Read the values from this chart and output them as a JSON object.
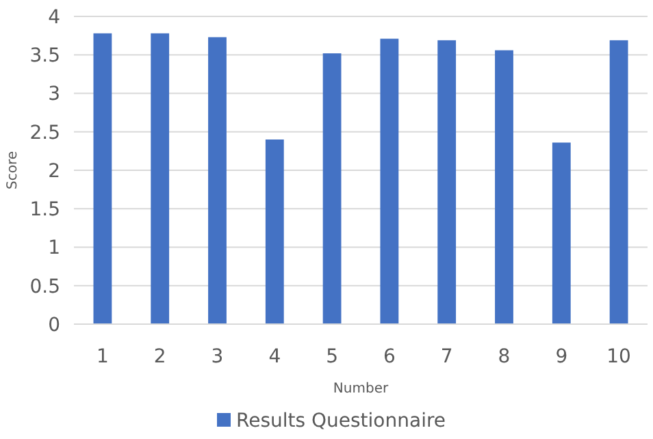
{
  "chart_data": {
    "type": "bar",
    "xlabel": "Number",
    "ylabel": "Score",
    "categories": [
      "1",
      "2",
      "3",
      "4",
      "5",
      "6",
      "7",
      "8",
      "9",
      "10"
    ],
    "series": [
      {
        "name": "Results Questionnaire",
        "color": "#4472c4",
        "values": [
          3.78,
          3.78,
          3.73,
          2.4,
          3.52,
          3.71,
          3.69,
          3.56,
          2.36,
          3.69
        ]
      }
    ],
    "ylim": [
      0,
      4
    ],
    "yticks": [
      0,
      0.5,
      1,
      1.5,
      2,
      2.5,
      3,
      3.5,
      4
    ],
    "grid": "y",
    "legend": "bottom"
  }
}
